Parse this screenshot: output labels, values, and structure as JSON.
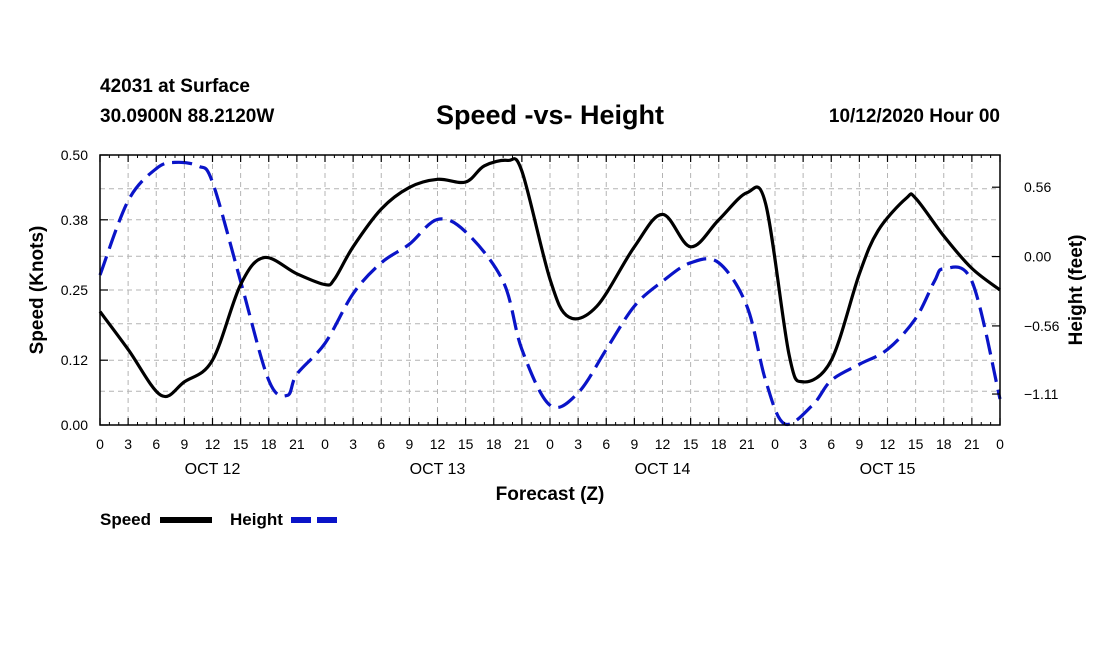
{
  "header": {
    "station": "42031 at Surface",
    "coords": "30.0900N 88.2120W",
    "title": "Speed -vs- Height",
    "datetime": "10/12/2020 Hour 00"
  },
  "colors": {
    "speed": "#000000",
    "height": "#0a14c8",
    "grid": "#b4b4b4"
  },
  "chart_data": {
    "type": "line",
    "title": "Speed -vs- Height",
    "xlabel": "Forecast (Z)",
    "ylabel": "Speed (Knots)",
    "y2label": "Height (feet)",
    "xlim": [
      0,
      96
    ],
    "ylim": [
      0,
      0.5
    ],
    "y2lim": [
      -1.36,
      0.82
    ],
    "y_ticks": [
      0.0,
      0.12,
      0.25,
      0.38,
      0.5
    ],
    "y_tick_labels": [
      "0.00",
      "0.12",
      "0.25",
      "0.38",
      "0.50"
    ],
    "y2_ticks": [
      -1.11,
      -0.56,
      0.0,
      0.56
    ],
    "y2_tick_labels": [
      "−1.11",
      "−0.56",
      "0.00",
      "0.56"
    ],
    "x_ticks": [
      0,
      3,
      6,
      9,
      12,
      15,
      18,
      21,
      24,
      27,
      30,
      33,
      36,
      39,
      42,
      45,
      48,
      51,
      54,
      57,
      60,
      63,
      66,
      69,
      72,
      75,
      78,
      81,
      84,
      87,
      90,
      93,
      96
    ],
    "x_tick_labels": [
      "0",
      "3",
      "6",
      "9",
      "12",
      "15",
      "18",
      "21",
      "0",
      "3",
      "6",
      "9",
      "12",
      "15",
      "18",
      "21",
      "0",
      "3",
      "6",
      "9",
      "12",
      "15",
      "18",
      "21",
      "0",
      "3",
      "6",
      "9",
      "12",
      "15",
      "18",
      "21",
      "0"
    ],
    "day_labels": [
      {
        "label": "OCT 12",
        "x": 12
      },
      {
        "label": "OCT 13",
        "x": 36
      },
      {
        "label": "OCT 14",
        "x": 60
      },
      {
        "label": "OCT 15",
        "x": 84
      }
    ],
    "grid": true,
    "legend": {
      "position": "bottom-left",
      "entries": [
        "Speed",
        "Height"
      ]
    },
    "series": [
      {
        "name": "Speed",
        "axis": "left",
        "style": "solid",
        "x": [
          0,
          3,
          6.5,
          9,
          12,
          15,
          17.5,
          21,
          24,
          25,
          27,
          30,
          33,
          36,
          39,
          41,
          43.5,
          45,
          48,
          50,
          53,
          57,
          60,
          63,
          66,
          69,
          71,
          73.5,
          75,
          78,
          81,
          83,
          86,
          87,
          90,
          93,
          96
        ],
        "y": [
          0.21,
          0.14,
          0.055,
          0.08,
          0.12,
          0.26,
          0.31,
          0.28,
          0.26,
          0.27,
          0.33,
          0.4,
          0.44,
          0.455,
          0.45,
          0.48,
          0.49,
          0.47,
          0.27,
          0.2,
          0.22,
          0.33,
          0.39,
          0.33,
          0.38,
          0.43,
          0.41,
          0.13,
          0.08,
          0.12,
          0.28,
          0.36,
          0.42,
          0.42,
          0.35,
          0.29,
          0.25
        ]
      },
      {
        "name": "Height",
        "axis": "right",
        "style": "dashed",
        "x": [
          0,
          3,
          6,
          8,
          10.5,
          12,
          15,
          18,
          20,
          21,
          24,
          27,
          30,
          33,
          36,
          39,
          43,
          45,
          48,
          51,
          54,
          57,
          60,
          63,
          66,
          69,
          71,
          73,
          76,
          78,
          81,
          84,
          87,
          89,
          90,
          93,
          96
        ],
        "y": [
          -0.15,
          0.45,
          0.71,
          0.76,
          0.73,
          0.6,
          -0.2,
          -1.0,
          -1.12,
          -0.95,
          -0.7,
          -0.3,
          -0.05,
          0.1,
          0.3,
          0.2,
          -0.2,
          -0.75,
          -1.2,
          -1.1,
          -0.75,
          -0.4,
          -0.2,
          -0.05,
          -0.05,
          -0.4,
          -1.0,
          -1.35,
          -1.2,
          -1.0,
          -0.87,
          -0.75,
          -0.5,
          -0.2,
          -0.1,
          -0.2,
          -1.15
        ]
      }
    ]
  }
}
